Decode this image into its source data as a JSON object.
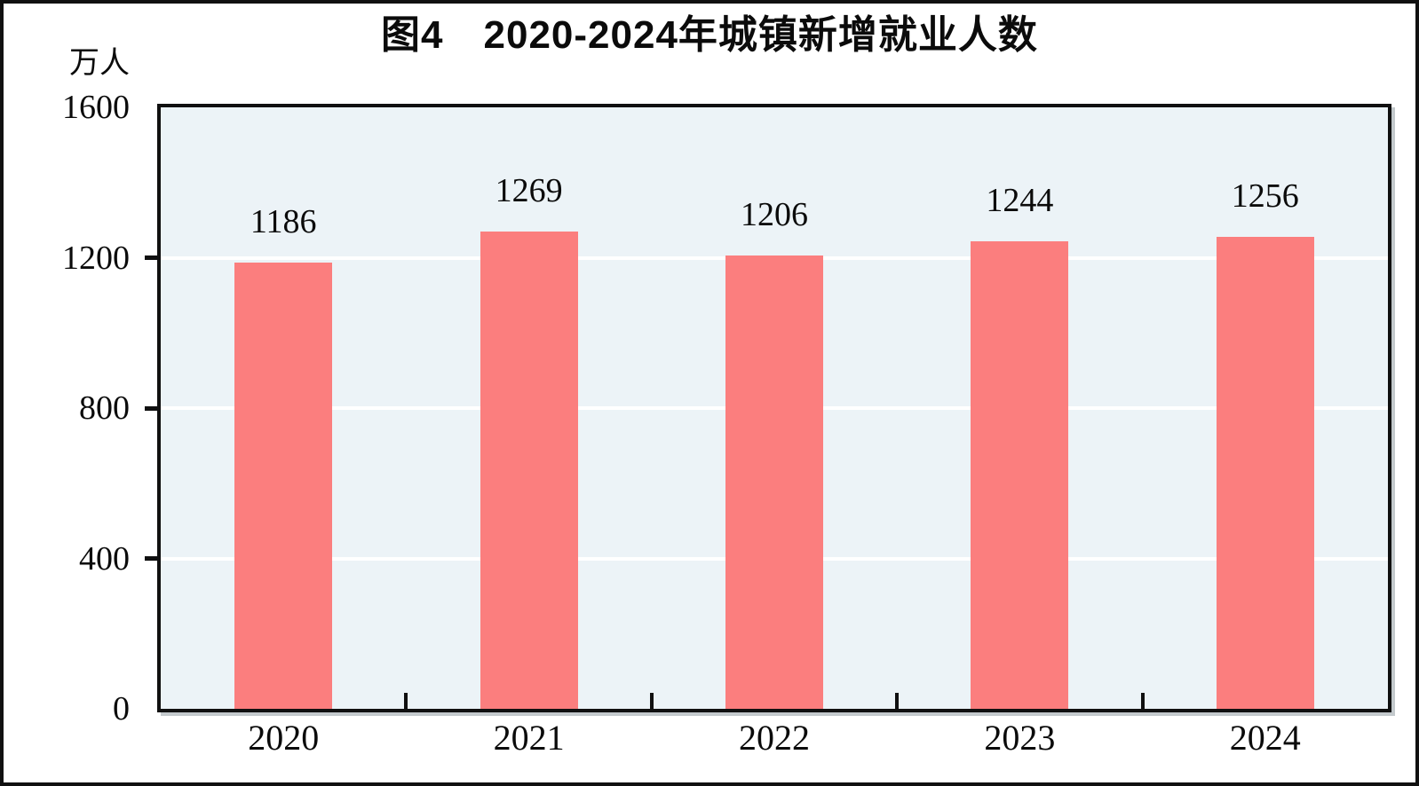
{
  "figure": {
    "title": "图4　2020-2024年城镇新增就业人数",
    "y_unit": "万人"
  },
  "chart_data": {
    "type": "bar",
    "title": "图4　2020-2024年城镇新增就业人数",
    "categories": [
      "2020",
      "2021",
      "2022",
      "2023",
      "2024"
    ],
    "values": [
      1186,
      1269,
      1206,
      1244,
      1256
    ],
    "data_labels": [
      "1186",
      "1269",
      "1206",
      "1244",
      "1256"
    ],
    "xlabel": "",
    "ylabel": "万人",
    "ylim": [
      0,
      1600
    ],
    "yticks": [
      0,
      400,
      800,
      1200,
      1600
    ],
    "grid": "horizontal",
    "legend_position": "none",
    "colors": {
      "bar": "#FB7E7E",
      "plot_background": "#ECF3F7",
      "gridline": "#FFFFFF",
      "axis": "#101010",
      "text": "#0B0B0B"
    }
  }
}
